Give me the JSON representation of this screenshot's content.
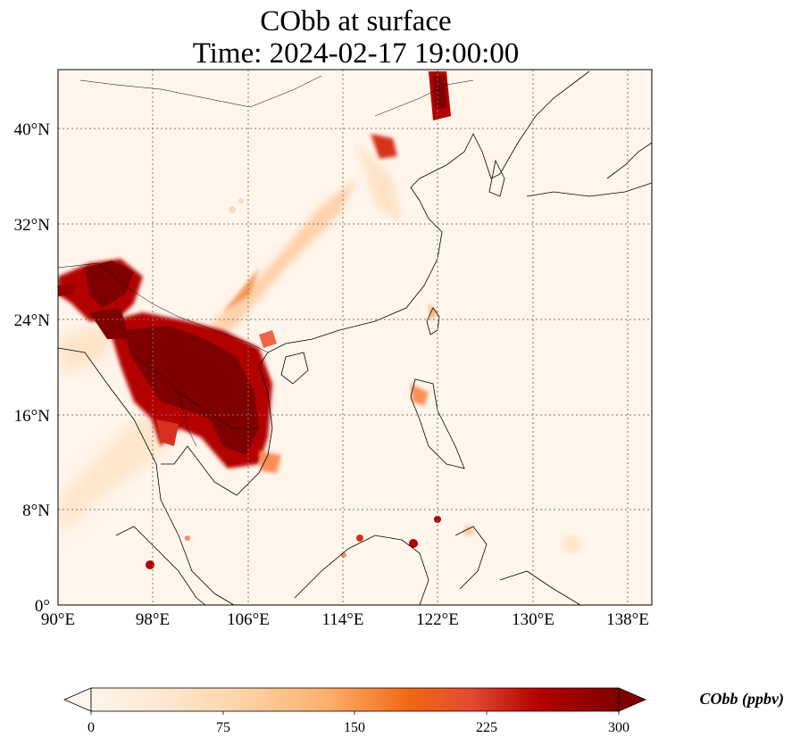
{
  "title_line1": "CObb at surface",
  "title_line2": "Time: 2024-02-17 19:00:00",
  "map": {
    "lon_range": [
      90,
      140
    ],
    "lat_range": [
      0,
      45
    ],
    "x_ticks": [
      "90°E",
      "98°E",
      "106°E",
      "114°E",
      "122°E",
      "130°E",
      "138°E"
    ],
    "y_ticks": [
      "0°",
      "8°N",
      "16°N",
      "24°N",
      "32°N",
      "40°N"
    ],
    "gridlines": "dotted",
    "background_color": "#fff5eb"
  },
  "colorbar": {
    "label": "CObb (ppbv)",
    "ticks": [
      "0",
      "75",
      "150",
      "225",
      "300"
    ],
    "colormap": [
      "#fff5eb",
      "#fdd49e",
      "#fdbb84",
      "#fc8d59",
      "#ef6548",
      "#d7301f",
      "#b30000",
      "#7f0000"
    ],
    "extend": "both"
  }
}
